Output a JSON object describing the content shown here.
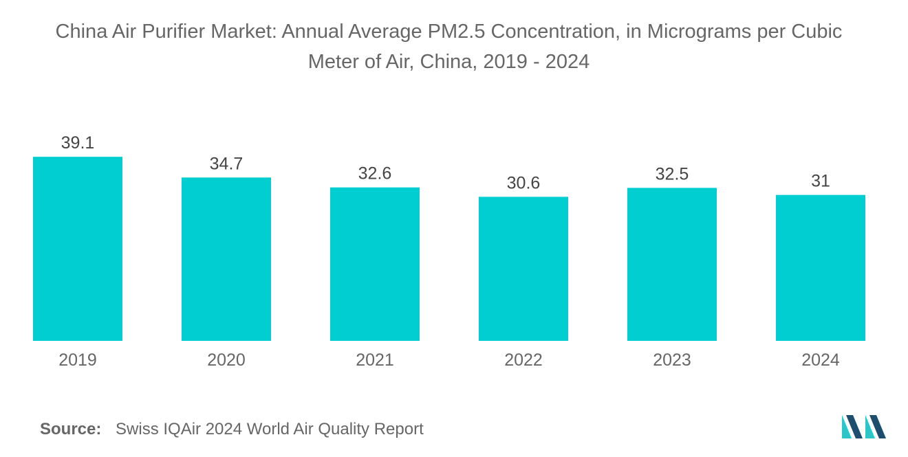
{
  "title_line1": "China Air Purifier Market: Annual Average PM2.5 Concentration, in Micrograms per Cubic",
  "title_line2": "Meter of Air, China, 2019 - 2024",
  "source_label": "Source:",
  "source_text": "Swiss IQAir 2024 World Air Quality Report",
  "colors": {
    "bar": "#00CED1",
    "text": "#666666",
    "value_label": "#444444",
    "logo_dark": "#1d4e6e",
    "logo_light": "#2cc5c8"
  },
  "chart_data": {
    "type": "bar",
    "title": "China Air Purifier Market: Annual Average PM2.5 Concentration, in Micrograms per Cubic Meter of Air, China, 2019 - 2024",
    "categories": [
      "2019",
      "2020",
      "2021",
      "2022",
      "2023",
      "2024"
    ],
    "values": [
      39.1,
      34.7,
      32.6,
      30.6,
      32.5,
      31
    ],
    "value_labels": [
      "39.1",
      "34.7",
      "32.6",
      "30.6",
      "32.5",
      "31"
    ],
    "xlabel": "",
    "ylabel": "",
    "ylim": [
      0,
      40
    ],
    "grid": false,
    "legend": "none"
  }
}
